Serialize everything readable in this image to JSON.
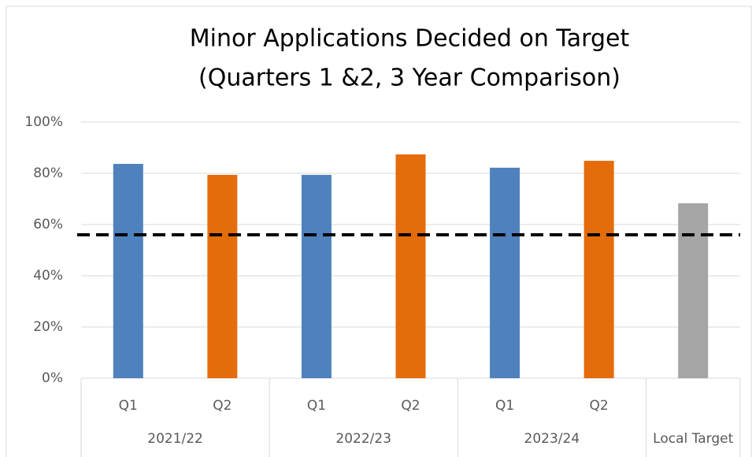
{
  "chart_data": {
    "type": "bar",
    "title": "Minor Applications Decided on Target",
    "subtitle": "(Quarters 1 &2, 3 Year Comparison)",
    "categories": [
      "Q1",
      "Q2",
      "Q1",
      "Q2",
      "Q1",
      "Q2",
      null
    ],
    "groups": [
      {
        "label": "2021/22",
        "size": 2
      },
      {
        "label": "2022/23",
        "size": 2
      },
      {
        "label": "2023/24",
        "size": 2
      },
      {
        "label": "Local Target",
        "size": 1
      }
    ],
    "values": [
      83.7,
      79.4,
      79.4,
      87.4,
      82.2,
      84.9,
      68.3
    ],
    "colors": [
      "#4f81bd",
      "#e46c0a",
      "#4f81bd",
      "#e46c0a",
      "#4f81bd",
      "#e46c0a",
      "#a5a5a5"
    ],
    "reference_line": {
      "value": 56,
      "color": "#000000",
      "style": "dashed"
    },
    "ylim": [
      0,
      100
    ],
    "yticks": [
      {
        "value": 0,
        "label": "0%"
      },
      {
        "value": 20,
        "label": "20%"
      },
      {
        "value": 40,
        "label": "40%"
      },
      {
        "value": 60,
        "label": "60%"
      },
      {
        "value": 80,
        "label": "80%"
      },
      {
        "value": 100,
        "label": "100%"
      }
    ],
    "grid": true
  }
}
